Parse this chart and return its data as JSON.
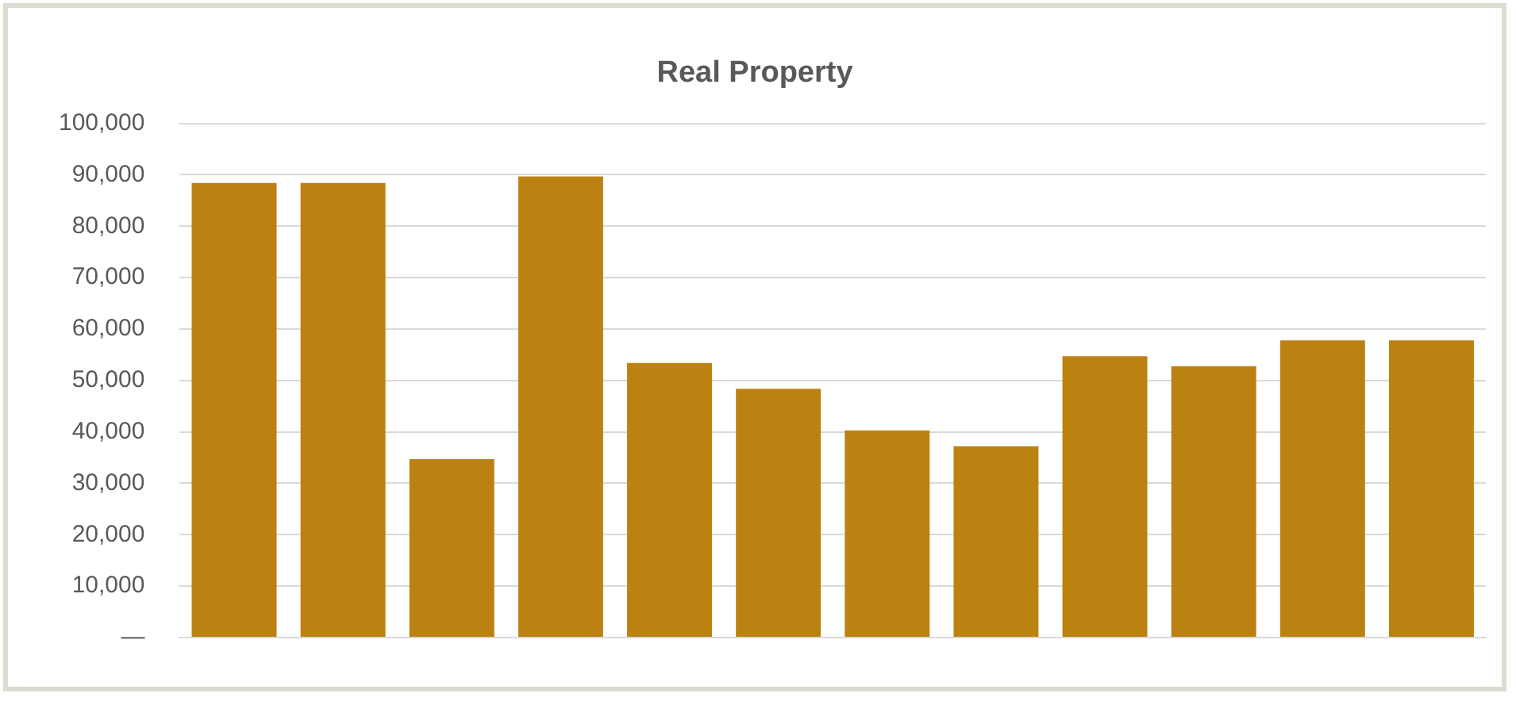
{
  "chart_data": {
    "type": "bar",
    "title": "Real Property",
    "categories": [
      null,
      null,
      null,
      null,
      null,
      null,
      null,
      null,
      null,
      null,
      null,
      null
    ],
    "values": [
      88400,
      88400,
      34700,
      89700,
      53400,
      48400,
      40300,
      37200,
      54700,
      52800,
      57800,
      57800
    ],
    "color": "#bc8211",
    "ylim": [
      0,
      100000
    ],
    "yticks": [
      {
        "value": 0,
        "label": "—"
      },
      {
        "value": 10000,
        "label": "10,000"
      },
      {
        "value": 20000,
        "label": "20,000"
      },
      {
        "value": 30000,
        "label": "30,000"
      },
      {
        "value": 40000,
        "label": "40,000"
      },
      {
        "value": 50000,
        "label": "50,000"
      },
      {
        "value": 60000,
        "label": "60,000"
      },
      {
        "value": 70000,
        "label": "70,000"
      },
      {
        "value": 80000,
        "label": "80,000"
      },
      {
        "value": 90000,
        "label": "90,000"
      },
      {
        "value": 100000,
        "label": "100,000"
      }
    ],
    "grid": "y"
  }
}
